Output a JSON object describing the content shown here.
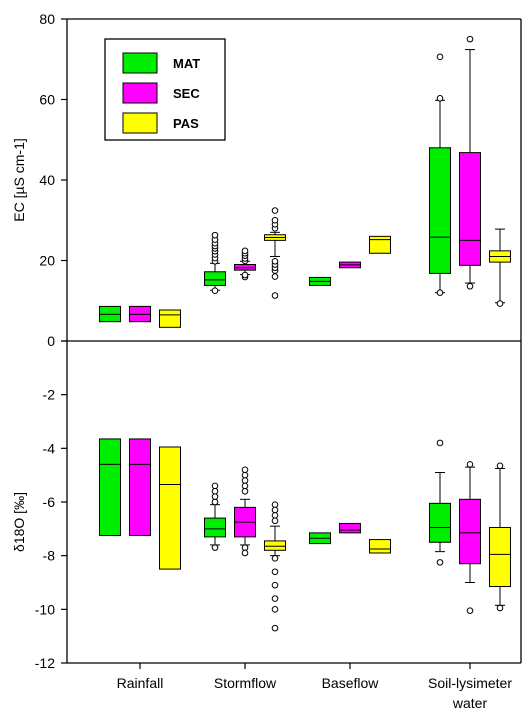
{
  "chart_data": [
    {
      "type": "box",
      "ylabel": "EC [µS cm-1]",
      "ylim": [
        0,
        80
      ],
      "yticks": [
        "0",
        "20",
        "40",
        "60",
        "80"
      ],
      "categories": [
        "Rainfall",
        "Stormflow",
        "Baseflow",
        "Soil-lysimeter water"
      ],
      "series": [
        {
          "name": "MAT",
          "color": "#00ee00",
          "boxes": [
            {
              "q1": 4.8,
              "median": 6.6,
              "q3": 8.6,
              "outliers": []
            },
            {
              "q1": 13.8,
              "median": 15.2,
              "q3": 17.2,
              "whisker_low": 12.6,
              "whisker_high": 19.3,
              "outliers": [
                12.5,
                19.8,
                20.6,
                21.5,
                22.3,
                23.0,
                23.6,
                24.3,
                25.2,
                26.3
              ]
            },
            {
              "q1": 13.8,
              "median": 14.8,
              "q3": 15.8,
              "outliers": []
            },
            {
              "q1": 16.8,
              "median": 25.8,
              "q3": 48.0,
              "whisker_low": 12.0,
              "whisker_high": 59.8,
              "outliers": [
                12.0,
                60.3,
                70.6
              ]
            }
          ]
        },
        {
          "name": "SEC",
          "color": "#ff00ff",
          "boxes": [
            {
              "q1": 4.8,
              "median": 6.6,
              "q3": 8.6,
              "outliers": []
            },
            {
              "q1": 17.6,
              "median": 18.2,
              "q3": 19.0,
              "whisker_low": 16.5,
              "whisker_high": 19.8,
              "outliers": [
                15.9,
                16.4,
                19.9,
                20.5,
                21.2,
                21.8,
                22.4
              ]
            },
            {
              "q1": 18.2,
              "median": 18.9,
              "q3": 19.6,
              "outliers": []
            },
            {
              "q1": 18.8,
              "median": 25.0,
              "q3": 46.8,
              "whisker_low": 14.4,
              "whisker_high": 72.4,
              "outliers": [
                13.6,
                75.0
              ]
            }
          ]
        },
        {
          "name": "PAS",
          "color": "#ffff00",
          "boxes": [
            {
              "q1": 3.4,
              "median": 6.5,
              "q3": 7.7,
              "outliers": []
            },
            {
              "q1": 25.0,
              "median": 25.7,
              "q3": 26.4,
              "whisker_low": 21.0,
              "whisker_high": 27.0,
              "outliers": [
                11.3,
                16.0,
                17.5,
                18.2,
                19.0,
                19.8,
                28.0,
                29.0,
                30.0,
                32.4
              ]
            },
            {
              "q1": 21.8,
              "median": 25.2,
              "q3": 26.0,
              "outliers": []
            },
            {
              "q1": 19.6,
              "median": 21.0,
              "q3": 22.4,
              "whisker_low": 9.5,
              "whisker_high": 27.8,
              "outliers": [
                9.3
              ]
            }
          ]
        }
      ],
      "legend": {
        "placement": "top-left"
      }
    },
    {
      "type": "box",
      "ylabel": "δ18O [‰]",
      "ylim": [
        -12,
        0
      ],
      "yticks": [
        "0",
        "-2",
        "-4",
        "-6",
        "-8",
        "-10",
        "-12"
      ],
      "categories": [
        "Rainfall",
        "Stormflow",
        "Baseflow",
        "Soil-lysimeter water"
      ],
      "series": [
        {
          "name": "MAT",
          "color": "#00ee00",
          "boxes": [
            {
              "q1": -7.25,
              "median": -4.6,
              "q3": -3.65,
              "outliers": []
            },
            {
              "q1": -7.3,
              "median": -7.0,
              "q3": -6.6,
              "whisker_low": -7.6,
              "whisker_high": -6.1,
              "outliers": [
                -5.4,
                -5.6,
                -5.8,
                -6.0,
                -7.7
              ]
            },
            {
              "q1": -7.55,
              "median": -7.35,
              "q3": -7.15,
              "outliers": []
            },
            {
              "q1": -7.5,
              "median": -6.95,
              "q3": -6.05,
              "whisker_low": -7.85,
              "whisker_high": -4.9,
              "outliers": [
                -3.8,
                -8.25
              ]
            }
          ]
        },
        {
          "name": "SEC",
          "color": "#ff00ff",
          "boxes": [
            {
              "q1": -7.25,
              "median": -4.6,
              "q3": -3.65,
              "outliers": []
            },
            {
              "q1": -7.3,
              "median": -6.75,
              "q3": -6.2,
              "whisker_low": -7.6,
              "whisker_high": -5.9,
              "outliers": [
                -4.8,
                -5.0,
                -5.2,
                -5.4,
                -5.6,
                -7.7,
                -7.9
              ]
            },
            {
              "q1": -7.15,
              "median": -7.05,
              "q3": -6.8,
              "outliers": []
            },
            {
              "q1": -8.3,
              "median": -7.15,
              "q3": -5.9,
              "whisker_low": -9.0,
              "whisker_high": -4.7,
              "outliers": [
                -4.6,
                -10.05
              ]
            }
          ]
        },
        {
          "name": "PAS",
          "color": "#ffff00",
          "boxes": [
            {
              "q1": -8.5,
              "median": -5.35,
              "q3": -3.95,
              "outliers": []
            },
            {
              "q1": -7.8,
              "median": -7.65,
              "q3": -7.45,
              "whisker_low": -8.0,
              "whisker_high": -6.9,
              "outliers": [
                -6.1,
                -6.3,
                -6.5,
                -6.7,
                -8.1,
                -8.6,
                -9.1,
                -9.6,
                -10.0,
                -10.7
              ]
            },
            {
              "q1": -7.9,
              "median": -7.75,
              "q3": -7.4,
              "outliers": []
            },
            {
              "q1": -9.15,
              "median": -7.95,
              "q3": -6.95,
              "whisker_low": -9.85,
              "whisker_high": -4.75,
              "outliers": [
                -4.65,
                -9.95
              ]
            }
          ]
        }
      ]
    }
  ]
}
